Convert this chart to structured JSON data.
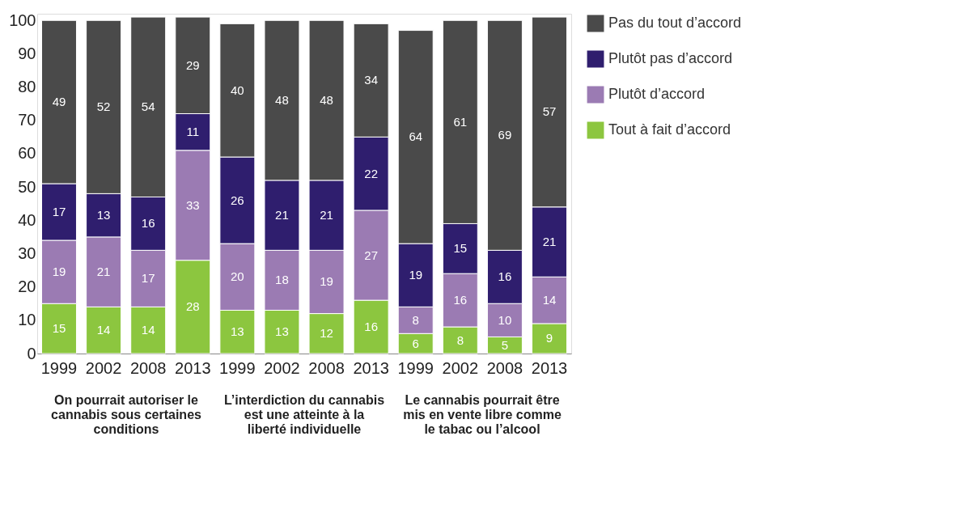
{
  "chart_data": {
    "type": "bar",
    "stacked": true,
    "categories": [
      "1999",
      "2002",
      "2008",
      "2013",
      "1999",
      "2002",
      "2008",
      "2013",
      "1999",
      "2002",
      "2008",
      "2013"
    ],
    "series": [
      {
        "name": "Tout à fait d’accord",
        "color": "#8cc63f",
        "values": [
          15,
          14,
          14,
          28,
          13,
          13,
          12,
          16,
          6,
          8,
          5,
          9
        ]
      },
      {
        "name": "Plutôt d’accord",
        "color": "#9b7bb3",
        "values": [
          19,
          21,
          17,
          33,
          20,
          18,
          19,
          27,
          8,
          16,
          10,
          14
        ]
      },
      {
        "name": "Plutôt pas d’accord",
        "color": "#2f1e6e",
        "values": [
          17,
          13,
          16,
          11,
          26,
          21,
          21,
          22,
          19,
          15,
          16,
          21
        ]
      },
      {
        "name": "Pas du tout d’accord",
        "color": "#4a4a4a",
        "values": [
          49,
          52,
          54,
          29,
          40,
          48,
          48,
          34,
          64,
          61,
          69,
          57
        ]
      }
    ],
    "ylim": [
      0,
      102
    ],
    "yticks": [
      0,
      10,
      20,
      30,
      40,
      50,
      60,
      70,
      80,
      90,
      100
    ],
    "grid": false,
    "legend": "right",
    "data_labels": true,
    "annotations": [
      "On pourrait autoriser le cannabis sous certaines conditions",
      "L’interdiction du cannabis est une atteinte à la liberté individuelle",
      "Le cannabis pourrait être mis en vente libre comme le tabac ou l’alcool"
    ]
  }
}
